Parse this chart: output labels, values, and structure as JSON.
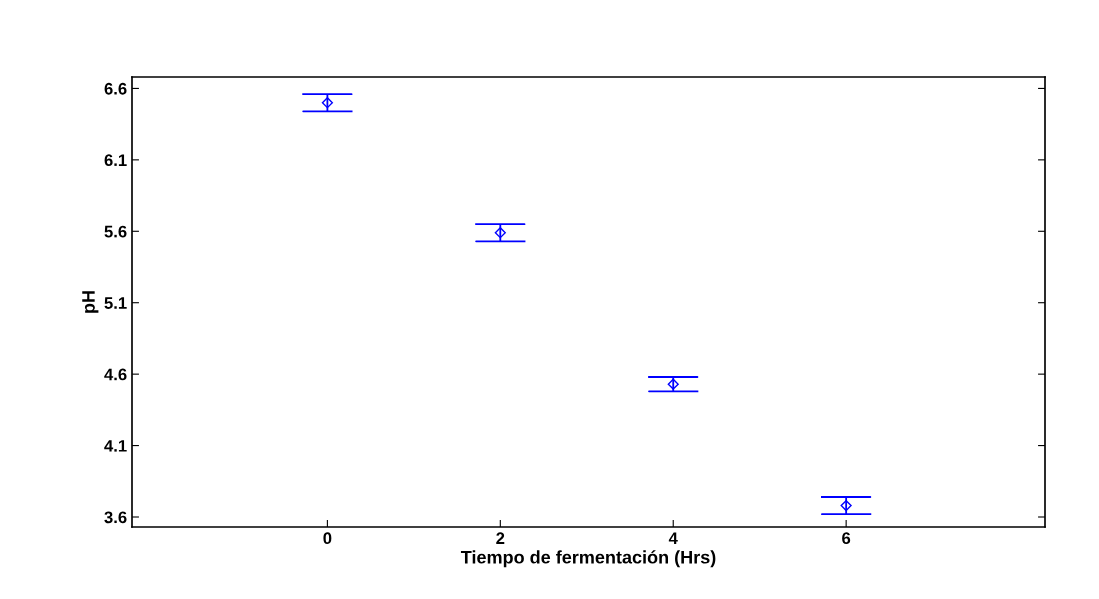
{
  "chart_data": {
    "type": "scatter",
    "xlabel": "Tiempo de fermentación (Hrs)",
    "ylabel": "pH",
    "categories": [
      "0",
      "2",
      "4",
      "6"
    ],
    "series": [
      {
        "color": "#0000ff",
        "values": [
          6.5,
          5.59,
          4.53,
          3.68
        ],
        "errors": [
          0.06,
          0.06,
          0.05,
          0.06
        ]
      }
    ],
    "marker": "diamond",
    "ylim": [
      3.53,
      6.68
    ],
    "yticks": [
      3.6,
      4.1,
      4.6,
      5.1,
      5.6,
      6.1,
      6.6
    ],
    "grid": false,
    "legend": false
  }
}
